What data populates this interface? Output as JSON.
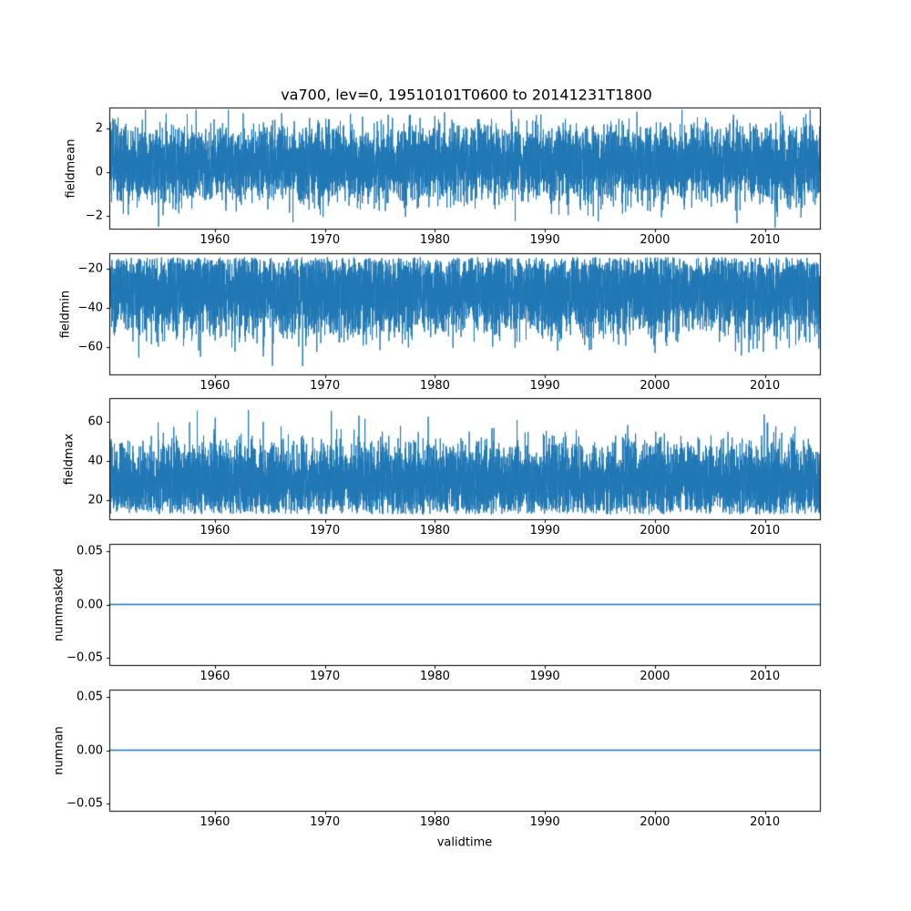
{
  "title": "va700, lev=0, 19510101T0600 to 20141231T1800",
  "xlabel": "validtime",
  "line_color": "#1f77b4",
  "axis_color": "#000000",
  "background_color": "#ffffff",
  "chart_data": [
    {
      "type": "line",
      "ylabel": "fieldmean",
      "xlim": [
        1950.4,
        2015.0
      ],
      "ylim": [
        -2.6,
        2.95
      ],
      "xtick_values": [
        1960,
        1970,
        1980,
        1990,
        2000,
        2010
      ],
      "xtick_labels": [
        "1960",
        "1970",
        "1980",
        "1990",
        "2000",
        "2010"
      ],
      "ytick_values": [
        2,
        0,
        -2
      ],
      "ytick_labels": [
        "2",
        "0",
        "−2"
      ],
      "series": {
        "kind": "noise",
        "name": "fieldmean",
        "x_start": 1950.4,
        "x_end": 2015.0,
        "n": 7000,
        "seed": 7,
        "mean": 0.4,
        "std": 0.85,
        "clip": [
          -2.55,
          2.85
        ]
      }
    },
    {
      "type": "line",
      "ylabel": "fieldmin",
      "xlim": [
        1950.4,
        2015.0
      ],
      "ylim": [
        -74,
        -12
      ],
      "xtick_values": [
        1960,
        1970,
        1980,
        1990,
        2000,
        2010
      ],
      "xtick_labels": [
        "1960",
        "1970",
        "1980",
        "1990",
        "2000",
        "2010"
      ],
      "ytick_values": [
        -20,
        -40,
        -60
      ],
      "ytick_labels": [
        "−20",
        "−40",
        "−60"
      ],
      "series": {
        "kind": "noise",
        "name": "fieldmin",
        "x_start": 1950.4,
        "x_end": 2015.0,
        "n": 7000,
        "seed": 101,
        "mean": -32,
        "std": 11,
        "reflect_high": -14,
        "clip": [
          -72,
          -13.2
        ],
        "spike_p": 0.0004,
        "spike_lo": -60,
        "spike_hi": -72
      }
    },
    {
      "type": "line",
      "ylabel": "fieldmax",
      "xlim": [
        1950.4,
        2015.0
      ],
      "ylim": [
        10.5,
        72
      ],
      "xtick_values": [
        1960,
        1970,
        1980,
        1990,
        2000,
        2010
      ],
      "xtick_labels": [
        "1960",
        "1970",
        "1980",
        "1990",
        "2000",
        "2010"
      ],
      "ytick_values": [
        60,
        40,
        20
      ],
      "ytick_labels": [
        "60",
        "40",
        "20"
      ],
      "series": {
        "kind": "noise",
        "name": "fieldmax",
        "x_start": 1950.4,
        "x_end": 2015.0,
        "n": 7000,
        "seed": 202,
        "mean": 30,
        "std": 10,
        "reflect_low": 13,
        "clip": [
          12.3,
          71
        ],
        "spike_p": 0.0007,
        "spike_lo": 58,
        "spike_hi": 71
      }
    },
    {
      "type": "line",
      "ylabel": "nummasked",
      "xlim": [
        1950.4,
        2015.0
      ],
      "ylim": [
        -0.0565,
        0.0565
      ],
      "xtick_values": [
        1960,
        1970,
        1980,
        1990,
        2000,
        2010
      ],
      "xtick_labels": [
        "1960",
        "1970",
        "1980",
        "1990",
        "2000",
        "2010"
      ],
      "ytick_values": [
        0.05,
        0.0,
        -0.05
      ],
      "ytick_labels": [
        "0.05",
        "0.00",
        "−0.05"
      ],
      "series": {
        "kind": "constant",
        "name": "nummasked",
        "x_start": 1950.4,
        "x_end": 2015.0,
        "value": 0
      }
    },
    {
      "type": "line",
      "ylabel": "numnan",
      "xlim": [
        1950.4,
        2015.0
      ],
      "ylim": [
        -0.0565,
        0.0565
      ],
      "xtick_values": [
        1960,
        1970,
        1980,
        1990,
        2000,
        2010
      ],
      "xtick_labels": [
        "1960",
        "1970",
        "1980",
        "1990",
        "2000",
        "2010"
      ],
      "ytick_values": [
        0.05,
        0.0,
        -0.05
      ],
      "ytick_labels": [
        "0.05",
        "0.00",
        "−0.05"
      ],
      "series": {
        "kind": "constant",
        "name": "numnan",
        "x_start": 1950.4,
        "x_end": 2015.0,
        "value": 0
      }
    }
  ]
}
